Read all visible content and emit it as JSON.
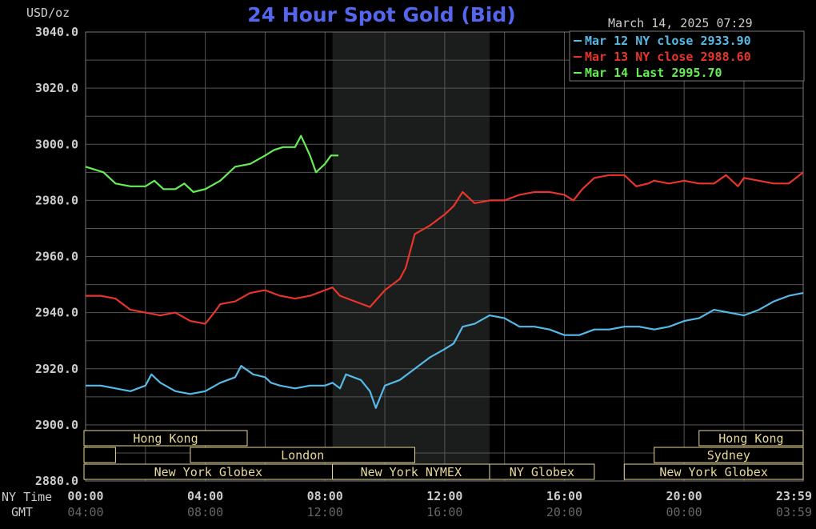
{
  "header": {
    "unit": "USD/oz",
    "title": "24 Hour Spot Gold (Bid)",
    "timestamp": "March 14, 2025 07:29"
  },
  "colors": {
    "background": "#000000",
    "title": "#5566ee",
    "grid": "#555555",
    "shade": "#1a1d1b",
    "session_bar": "#e8d896",
    "session_text": "#e8d896",
    "axis_text": "#cccccc",
    "gmt_text": "#666666"
  },
  "legend": [
    {
      "text": "Mar 12 NY close 2933.90",
      "color": "#56b9e8"
    },
    {
      "text": "Mar 13 NY close 2988.60",
      "color": "#e8352b"
    },
    {
      "text": "Mar 14 Last 2995.70",
      "color": "#66ee55"
    }
  ],
  "bottom_axis": {
    "row1_label": "NY Time",
    "row2_label": "GMT",
    "ny_ticks": [
      "00:00",
      "04:00",
      "08:00",
      "12:00",
      "16:00",
      "20:00",
      "23:59"
    ],
    "gmt_ticks": [
      "04:00",
      "08:00",
      "12:00",
      "16:00",
      "20:00",
      "00:00",
      "03:59"
    ]
  },
  "sessions": {
    "row1": [
      {
        "label": "Hong Kong",
        "start": -0.1,
        "end": 5.4
      },
      {
        "label": "Hong Kong",
        "start": 20.5,
        "end": 23.99
      }
    ],
    "row2": [
      {
        "label": "",
        "start": -0.1,
        "end": 1.0
      },
      {
        "label": "London",
        "start": 3.5,
        "end": 11.0
      },
      {
        "label": "Sydney",
        "start": 19.0,
        "end": 23.99
      }
    ],
    "row3": [
      {
        "label": "New York Globex",
        "start": -0.1,
        "end": 8.25
      },
      {
        "label": "New York NYMEX",
        "start": 8.25,
        "end": 13.5
      },
      {
        "label": "NY Globex",
        "start": 13.5,
        "end": 17.0
      },
      {
        "label": "New York Globex",
        "start": 18.0,
        "end": 23.99
      }
    ]
  },
  "chart_data": {
    "type": "line",
    "title": "24 Hour Spot Gold (Bid)",
    "ylabel": "USD/oz",
    "xlabel": "NY Time",
    "ylim": [
      2880,
      3040
    ],
    "xlim": [
      0,
      23.98
    ],
    "yticks": [
      "3040.0",
      "3020.0",
      "3000.0",
      "2980.0",
      "2960.0",
      "2940.0",
      "2920.0",
      "2900.0",
      "2880.0"
    ],
    "ytick_values": [
      3040,
      3020,
      3000,
      2980,
      2960,
      2940,
      2920,
      2900,
      2880
    ],
    "xticks_ny": [
      "00:00",
      "04:00",
      "08:00",
      "12:00",
      "16:00",
      "20:00",
      "23:59"
    ],
    "xtick_values": [
      0,
      4,
      8,
      12,
      16,
      20,
      23.98
    ],
    "grid": true,
    "shaded_hours": [
      8.25,
      13.5
    ],
    "legend_position": "top-right",
    "series": [
      {
        "name": "Mar 12 NY close 2933.90",
        "color": "#56b9e8",
        "points": [
          [
            0,
            2914
          ],
          [
            0.5,
            2914
          ],
          [
            1,
            2913
          ],
          [
            1.5,
            2912
          ],
          [
            2,
            2914
          ],
          [
            2.2,
            2918
          ],
          [
            2.5,
            2915
          ],
          [
            3,
            2912
          ],
          [
            3.5,
            2911
          ],
          [
            4,
            2912
          ],
          [
            4.5,
            2915
          ],
          [
            5,
            2917
          ],
          [
            5.2,
            2921
          ],
          [
            5.6,
            2918
          ],
          [
            6,
            2917
          ],
          [
            6.2,
            2915
          ],
          [
            6.5,
            2914
          ],
          [
            7,
            2913
          ],
          [
            7.5,
            2914
          ],
          [
            8,
            2914
          ],
          [
            8.25,
            2915
          ],
          [
            8.5,
            2913
          ],
          [
            8.7,
            2918
          ],
          [
            9.2,
            2916
          ],
          [
            9.5,
            2912
          ],
          [
            9.7,
            2906
          ],
          [
            10,
            2914
          ],
          [
            10.5,
            2916
          ],
          [
            11,
            2920
          ],
          [
            11.5,
            2924
          ],
          [
            12,
            2927
          ],
          [
            12.3,
            2929
          ],
          [
            12.6,
            2935
          ],
          [
            13,
            2936
          ],
          [
            13.5,
            2939
          ],
          [
            14,
            2938
          ],
          [
            14.5,
            2935
          ],
          [
            15,
            2935
          ],
          [
            15.5,
            2934
          ],
          [
            16,
            2932
          ],
          [
            16.5,
            2932
          ],
          [
            17,
            2934
          ],
          [
            17.5,
            2934
          ],
          [
            18,
            2935
          ],
          [
            18.5,
            2935
          ],
          [
            19,
            2934
          ],
          [
            19.5,
            2935
          ],
          [
            20,
            2937
          ],
          [
            20.5,
            2938
          ],
          [
            21,
            2941
          ],
          [
            21.5,
            2940
          ],
          [
            22,
            2939
          ],
          [
            22.5,
            2941
          ],
          [
            23,
            2944
          ],
          [
            23.5,
            2946
          ],
          [
            23.98,
            2947
          ]
        ]
      },
      {
        "name": "Mar 13 NY close 2988.60",
        "color": "#e8352b",
        "points": [
          [
            0,
            2946
          ],
          [
            0.5,
            2946
          ],
          [
            1,
            2945
          ],
          [
            1.5,
            2941
          ],
          [
            2,
            2940
          ],
          [
            2.5,
            2939
          ],
          [
            3,
            2940
          ],
          [
            3.5,
            2937
          ],
          [
            4,
            2936
          ],
          [
            4.3,
            2940
          ],
          [
            4.5,
            2943
          ],
          [
            5,
            2944
          ],
          [
            5.5,
            2947
          ],
          [
            6,
            2948
          ],
          [
            6.5,
            2946
          ],
          [
            7,
            2945
          ],
          [
            7.5,
            2946
          ],
          [
            8,
            2948
          ],
          [
            8.25,
            2949
          ],
          [
            8.5,
            2946
          ],
          [
            9,
            2944
          ],
          [
            9.5,
            2942
          ],
          [
            10,
            2948
          ],
          [
            10.5,
            2952
          ],
          [
            10.7,
            2956
          ],
          [
            11,
            2968
          ],
          [
            11.5,
            2971
          ],
          [
            12,
            2975
          ],
          [
            12.3,
            2978
          ],
          [
            12.6,
            2983
          ],
          [
            13,
            2979
          ],
          [
            13.5,
            2980
          ],
          [
            14,
            2980
          ],
          [
            14.5,
            2982
          ],
          [
            15,
            2983
          ],
          [
            15.5,
            2983
          ],
          [
            16,
            2982
          ],
          [
            16.3,
            2980
          ],
          [
            16.6,
            2984
          ],
          [
            17,
            2988
          ],
          [
            17.5,
            2989
          ],
          [
            18,
            2989
          ],
          [
            18.4,
            2985
          ],
          [
            18.8,
            2986
          ],
          [
            19,
            2987
          ],
          [
            19.5,
            2986
          ],
          [
            20,
            2987
          ],
          [
            20.5,
            2986
          ],
          [
            21,
            2986
          ],
          [
            21.4,
            2989
          ],
          [
            21.8,
            2985
          ],
          [
            22,
            2988
          ],
          [
            22.5,
            2987
          ],
          [
            23,
            2986
          ],
          [
            23.5,
            2986
          ],
          [
            23.98,
            2990
          ]
        ]
      },
      {
        "name": "Mar 14 Last 2995.70",
        "color": "#66ee55",
        "points": [
          [
            0,
            2992
          ],
          [
            0.3,
            2991
          ],
          [
            0.6,
            2990
          ],
          [
            1,
            2986
          ],
          [
            1.5,
            2985
          ],
          [
            2,
            2985
          ],
          [
            2.3,
            2987
          ],
          [
            2.6,
            2984
          ],
          [
            3,
            2984
          ],
          [
            3.3,
            2986
          ],
          [
            3.6,
            2983
          ],
          [
            4,
            2984
          ],
          [
            4.5,
            2987
          ],
          [
            5,
            2992
          ],
          [
            5.5,
            2993
          ],
          [
            6,
            2996
          ],
          [
            6.3,
            2998
          ],
          [
            6.6,
            2999
          ],
          [
            7,
            2999
          ],
          [
            7.2,
            3003
          ],
          [
            7.5,
            2996
          ],
          [
            7.7,
            2990
          ],
          [
            8,
            2993
          ],
          [
            8.2,
            2996
          ],
          [
            8.45,
            2996
          ]
        ]
      }
    ]
  }
}
